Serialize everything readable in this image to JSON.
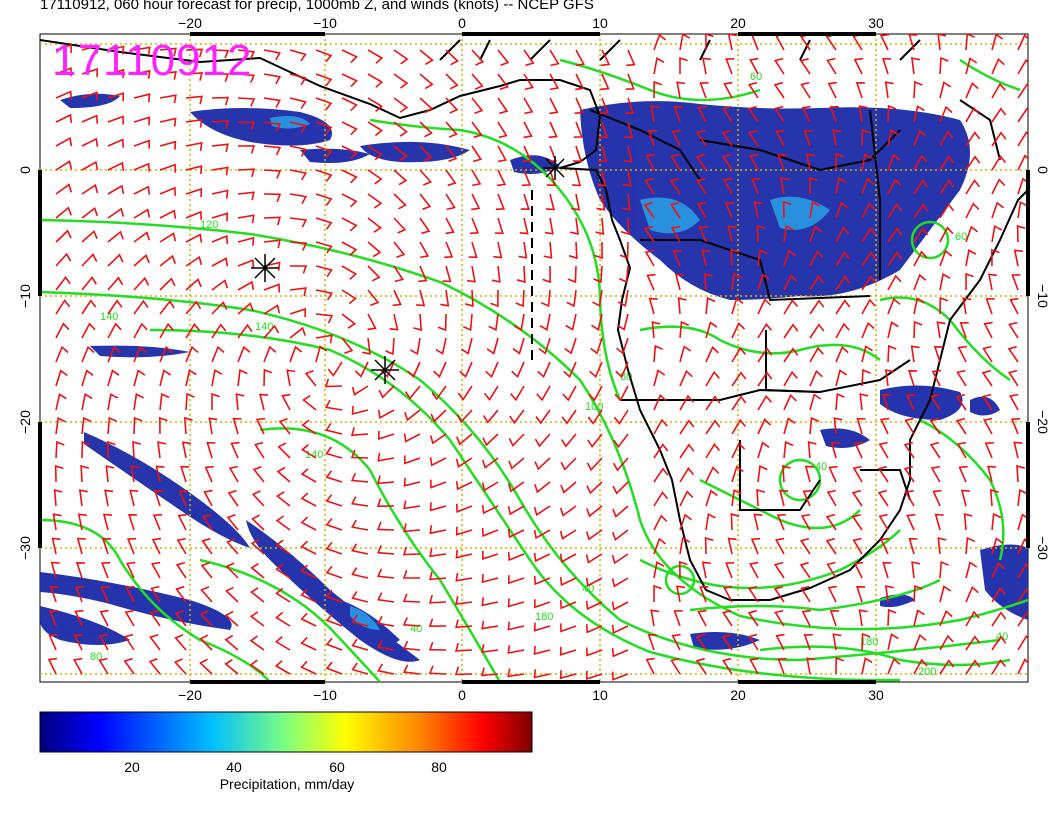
{
  "title": "17110912, 060 hour forecast for precip, 1000mb Z, and winds (knots) -- NCEP GFS",
  "date_stamp": "17110912",
  "map": {
    "lon_ticks": [
      "−20",
      "−10",
      "0",
      "10",
      "20",
      "30"
    ],
    "lat_ticks": [
      "0",
      "−10",
      "−20",
      "−30"
    ],
    "contour_labels": [
      "40",
      "60",
      "80",
      "100",
      "120",
      "140",
      "160",
      "180",
      "200"
    ],
    "colors": {
      "precip_low": "#1a2aa8",
      "contour": "#22dd22",
      "wind_barb": "#ee1111",
      "land": "#000000",
      "grid": "#d9b000",
      "stamp": "#ff22ff"
    }
  },
  "colorbar": {
    "ticks": [
      "20",
      "40",
      "60",
      "80"
    ],
    "label": "Precipitation, mm/day",
    "colormap": [
      "#00007f",
      "#0000ff",
      "#007fff",
      "#00ffff",
      "#7fff7f",
      "#ffff00",
      "#ff7f00",
      "#ff0000",
      "#7f0000"
    ]
  }
}
